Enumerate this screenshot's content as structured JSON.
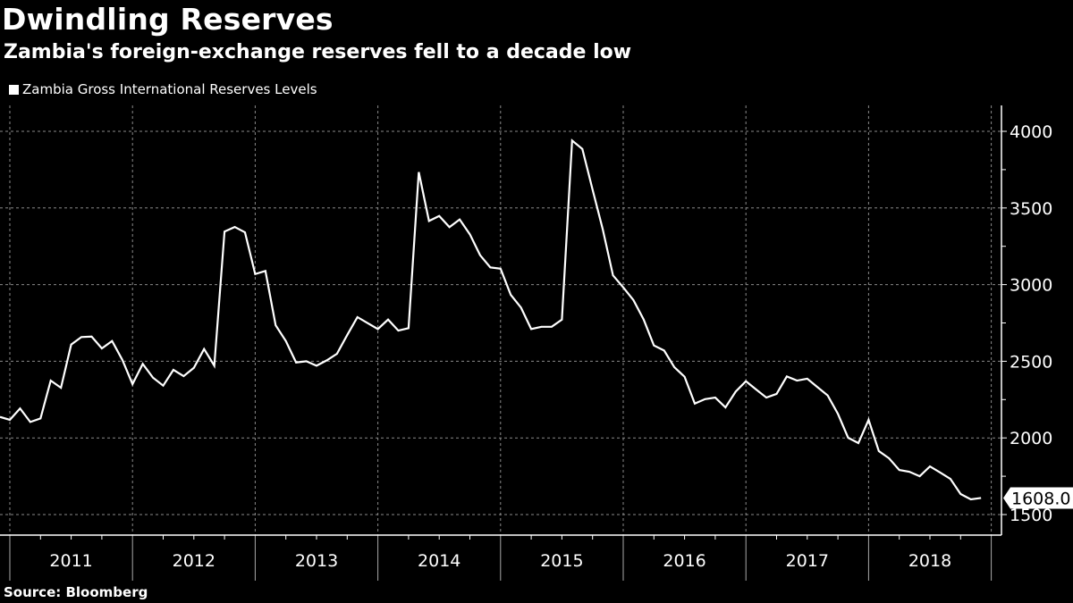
{
  "title": "Dwindling Reserves",
  "subtitle": "Zambia's foreign-exchange reserves fell to a decade low",
  "source": "Source: Bloomberg",
  "colors": {
    "background": "#000000",
    "line": "#ffffff",
    "grid": "#8a8a8a"
  },
  "chart_data": {
    "type": "line",
    "title": "Dwindling Reserves",
    "subtitle": "Zambia's foreign-exchange reserves fell to a decade low",
    "xlabel": "",
    "ylabel": "",
    "x_tick_labels": [
      "2011",
      "2012",
      "2013",
      "2014",
      "2015",
      "2016",
      "2017",
      "2018"
    ],
    "y_ticks": [
      1500,
      2000,
      2500,
      3000,
      3500,
      4000
    ],
    "y_tick_labels": [
      "1500",
      "2000",
      "2500",
      "3000",
      "3500",
      "4000"
    ],
    "ylim": [
      1400,
      4170
    ],
    "y_axis_position": "right",
    "grid": true,
    "legend_placement": "top-left",
    "last_value_label": "1608.0",
    "series": [
      {
        "name": "Zambia Gross International Reserves Levels",
        "x": [
          "2010-12",
          "2011-01",
          "2011-02",
          "2011-03",
          "2011-04",
          "2011-05",
          "2011-06",
          "2011-07",
          "2011-08",
          "2011-09",
          "2011-10",
          "2011-11",
          "2011-12",
          "2012-01",
          "2012-02",
          "2012-03",
          "2012-04",
          "2012-05",
          "2012-06",
          "2012-07",
          "2012-08",
          "2012-09",
          "2012-10",
          "2012-11",
          "2012-12",
          "2013-01",
          "2013-02",
          "2013-03",
          "2013-04",
          "2013-05",
          "2013-06",
          "2013-07",
          "2013-08",
          "2013-09",
          "2013-10",
          "2013-11",
          "2013-12",
          "2014-01",
          "2014-02",
          "2014-03",
          "2014-04",
          "2014-05",
          "2014-06",
          "2014-07",
          "2014-08",
          "2014-09",
          "2014-10",
          "2014-11",
          "2014-12",
          "2015-01",
          "2015-02",
          "2015-03",
          "2015-04",
          "2015-05",
          "2015-06",
          "2015-07",
          "2015-08",
          "2015-09",
          "2015-10",
          "2015-11",
          "2015-12",
          "2016-01",
          "2016-02",
          "2016-03",
          "2016-04",
          "2016-05",
          "2016-06",
          "2016-07",
          "2016-08",
          "2016-09",
          "2016-10",
          "2016-11",
          "2016-12",
          "2017-01",
          "2017-02",
          "2017-03",
          "2017-04",
          "2017-05",
          "2017-06",
          "2017-07",
          "2017-08",
          "2017-09",
          "2017-10",
          "2017-11",
          "2017-12",
          "2018-01",
          "2018-02",
          "2018-03",
          "2018-04",
          "2018-05",
          "2018-06",
          "2018-07",
          "2018-08",
          "2018-09",
          "2018-10",
          "2018-11",
          "2018-12"
        ],
        "values": [
          2137,
          2118,
          2192,
          2104,
          2127,
          2374,
          2327,
          2609,
          2658,
          2661,
          2584,
          2632,
          2510,
          2351,
          2483,
          2393,
          2341,
          2444,
          2403,
          2457,
          2580,
          2471,
          3346,
          3376,
          3341,
          3069,
          3089,
          2735,
          2632,
          2492,
          2500,
          2471,
          2506,
          2549,
          2671,
          2788,
          2749,
          2710,
          2772,
          2700,
          2716,
          3734,
          3415,
          3448,
          3375,
          3425,
          3328,
          3192,
          3112,
          3104,
          2933,
          2850,
          2710,
          2725,
          2725,
          2772,
          3940,
          3885,
          3620,
          3360,
          3060,
          2982,
          2899,
          2772,
          2603,
          2570,
          2461,
          2399,
          2224,
          2253,
          2263,
          2199,
          2302,
          2370,
          2316,
          2263,
          2287,
          2401,
          2374,
          2386,
          2331,
          2277,
          2157,
          2001,
          1966,
          2118,
          1914,
          1867,
          1791,
          1779,
          1750,
          1814,
          1774,
          1733,
          1634,
          1599,
          1608
        ]
      }
    ]
  }
}
